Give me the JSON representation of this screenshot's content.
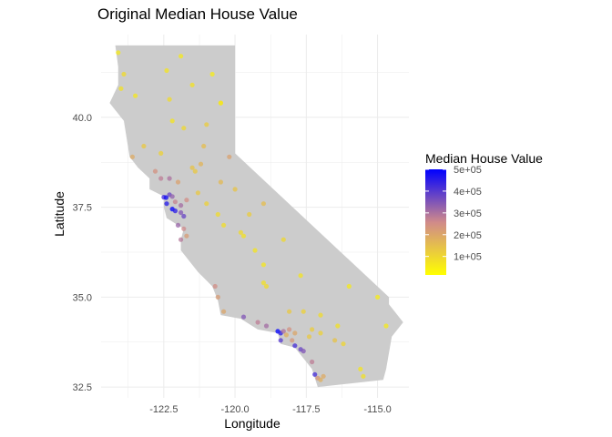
{
  "chart_data": {
    "type": "scatter",
    "title": "Original Median House Value",
    "xlabel": "Longitude",
    "ylabel": "Latitude",
    "xlim": [
      -124.7,
      -113.9
    ],
    "ylim": [
      32.2,
      42.3
    ],
    "x_ticks": [
      -122.5,
      -120.0,
      -117.5,
      -115.0
    ],
    "x_tick_labels": [
      "-122.5",
      "-120.0",
      "-117.5",
      "-115.0"
    ],
    "y_ticks": [
      32.5,
      35.0,
      37.5,
      40.0
    ],
    "y_tick_labels": [
      "32.5",
      "35.0",
      "37.5",
      "40.0"
    ],
    "grid": true,
    "legend": {
      "title": "Median House Value",
      "placement": "right",
      "min": 15000,
      "max": 500001,
      "low_color": "#ffff00",
      "high_color": "#0000ff",
      "breaks": [
        100000,
        200000,
        300000,
        400000,
        500000
      ],
      "break_labels": [
        "1e+05",
        "2e+05",
        "3e+05",
        "4e+05",
        "5e+05"
      ]
    },
    "map": {
      "region": "California",
      "fill_color": "#cccccc",
      "outline_lonlat": [
        [
          -124.2,
          42.0
        ],
        [
          -120.0,
          42.0
        ],
        [
          -120.0,
          39.0
        ],
        [
          -114.6,
          35.0
        ],
        [
          -114.6,
          34.8
        ],
        [
          -114.1,
          34.3
        ],
        [
          -114.5,
          33.9
        ],
        [
          -114.7,
          33.0
        ],
        [
          -114.8,
          32.7
        ],
        [
          -117.1,
          32.5
        ],
        [
          -117.3,
          33.0
        ],
        [
          -117.9,
          33.6
        ],
        [
          -118.4,
          33.7
        ],
        [
          -118.5,
          34.0
        ],
        [
          -119.2,
          34.1
        ],
        [
          -119.8,
          34.4
        ],
        [
          -120.5,
          34.5
        ],
        [
          -120.6,
          34.9
        ],
        [
          -120.8,
          35.3
        ],
        [
          -121.3,
          35.7
        ],
        [
          -121.9,
          36.3
        ],
        [
          -121.9,
          36.6
        ],
        [
          -121.8,
          36.9
        ],
        [
          -122.0,
          37.0
        ],
        [
          -122.4,
          37.2
        ],
        [
          -122.5,
          37.5
        ],
        [
          -122.5,
          37.8
        ],
        [
          -123.0,
          38.0
        ],
        [
          -123.0,
          38.3
        ],
        [
          -123.4,
          38.6
        ],
        [
          -123.7,
          38.9
        ],
        [
          -123.8,
          39.4
        ],
        [
          -123.9,
          39.9
        ],
        [
          -124.4,
          40.4
        ],
        [
          -124.1,
          40.9
        ],
        [
          -124.1,
          41.4
        ],
        [
          -124.2,
          42.0
        ]
      ]
    },
    "series": [
      {
        "note_columns": [
          "longitude",
          "latitude",
          "median_house_value"
        ],
        "points": [
          [
            -124.1,
            41.8,
            60000
          ],
          [
            -123.9,
            41.2,
            90000
          ],
          [
            -124.0,
            40.8,
            80000
          ],
          [
            -123.5,
            40.6,
            65000
          ],
          [
            -122.4,
            41.3,
            70000
          ],
          [
            -121.9,
            41.7,
            60000
          ],
          [
            -121.5,
            40.9,
            75000
          ],
          [
            -122.3,
            40.5,
            90000
          ],
          [
            -120.8,
            41.2,
            55000
          ],
          [
            -120.5,
            40.4,
            60000
          ],
          [
            -120.5,
            40.4,
            70000
          ],
          [
            -121.0,
            39.8,
            120000
          ],
          [
            -121.8,
            39.7,
            95000
          ],
          [
            -122.2,
            39.9,
            70000
          ],
          [
            -122.6,
            39.0,
            110000
          ],
          [
            -123.2,
            39.2,
            130000
          ],
          [
            -123.6,
            38.9,
            190000
          ],
          [
            -122.8,
            38.5,
            240000
          ],
          [
            -122.6,
            38.3,
            280000
          ],
          [
            -122.3,
            38.3,
            300000
          ],
          [
            -122.0,
            38.2,
            210000
          ],
          [
            -121.5,
            38.6,
            140000
          ],
          [
            -121.2,
            38.7,
            170000
          ],
          [
            -121.4,
            38.5,
            130000
          ],
          [
            -121.1,
            39.2,
            150000
          ],
          [
            -120.2,
            38.9,
            210000
          ],
          [
            -120.5,
            38.2,
            160000
          ],
          [
            -122.5,
            37.78,
            430000
          ],
          [
            -122.42,
            37.77,
            480000
          ],
          [
            -122.3,
            37.85,
            380000
          ],
          [
            -122.2,
            37.8,
            330000
          ],
          [
            -122.1,
            37.65,
            270000
          ],
          [
            -122.2,
            37.45,
            500000
          ],
          [
            -122.4,
            37.6,
            460000
          ],
          [
            -122.1,
            37.4,
            450000
          ],
          [
            -121.9,
            37.35,
            350000
          ],
          [
            -121.8,
            37.25,
            380000
          ],
          [
            -121.9,
            37.55,
            310000
          ],
          [
            -121.7,
            37.7,
            250000
          ],
          [
            -122.0,
            37.0,
            320000
          ],
          [
            -121.9,
            36.6,
            290000
          ],
          [
            -121.8,
            36.9,
            260000
          ],
          [
            -121.7,
            36.7,
            220000
          ],
          [
            -121.3,
            37.9,
            130000
          ],
          [
            -121.0,
            37.6,
            110000
          ],
          [
            -120.6,
            37.3,
            90000
          ],
          [
            -120.4,
            37.0,
            85000
          ],
          [
            -119.8,
            36.8,
            90000
          ],
          [
            -119.7,
            36.7,
            75000
          ],
          [
            -119.3,
            36.3,
            70000
          ],
          [
            -119.0,
            35.9,
            65000
          ],
          [
            -119.0,
            35.4,
            80000
          ],
          [
            -118.9,
            35.3,
            90000
          ],
          [
            -120.7,
            35.3,
            250000
          ],
          [
            -120.6,
            35.0,
            220000
          ],
          [
            -120.4,
            34.6,
            200000
          ],
          [
            -119.7,
            34.45,
            350000
          ],
          [
            -119.2,
            34.3,
            280000
          ],
          [
            -118.9,
            34.2,
            310000
          ],
          [
            -118.5,
            34.05,
            500000
          ],
          [
            -118.4,
            34.0,
            450000
          ],
          [
            -118.3,
            34.05,
            300000
          ],
          [
            -118.2,
            33.95,
            180000
          ],
          [
            -118.1,
            34.1,
            240000
          ],
          [
            -117.9,
            34.0,
            200000
          ],
          [
            -118.0,
            33.8,
            230000
          ],
          [
            -118.4,
            33.8,
            400000
          ],
          [
            -117.9,
            33.65,
            420000
          ],
          [
            -117.7,
            33.55,
            380000
          ],
          [
            -117.6,
            33.5,
            350000
          ],
          [
            -117.3,
            33.2,
            280000
          ],
          [
            -117.2,
            32.85,
            420000
          ],
          [
            -117.1,
            32.75,
            230000
          ],
          [
            -117.0,
            32.7,
            180000
          ],
          [
            -116.9,
            32.8,
            190000
          ],
          [
            -117.3,
            34.1,
            120000
          ],
          [
            -117.4,
            33.9,
            130000
          ],
          [
            -117.0,
            34.0,
            110000
          ],
          [
            -116.5,
            33.8,
            140000
          ],
          [
            -116.2,
            33.7,
            100000
          ],
          [
            -116.4,
            34.2,
            80000
          ],
          [
            -117.0,
            34.5,
            90000
          ],
          [
            -117.6,
            34.6,
            110000
          ],
          [
            -118.1,
            34.6,
            130000
          ],
          [
            -115.5,
            32.8,
            80000
          ],
          [
            -115.6,
            33.0,
            70000
          ],
          [
            -114.7,
            34.2,
            60000
          ],
          [
            -115.0,
            35.0,
            55000
          ],
          [
            -116.0,
            35.3,
            60000
          ],
          [
            -117.7,
            35.6,
            70000
          ],
          [
            -118.3,
            36.6,
            95000
          ],
          [
            -119.0,
            37.6,
            150000
          ],
          [
            -120.0,
            38.0,
            140000
          ],
          [
            -119.5,
            37.3,
            120000
          ]
        ]
      }
    ]
  }
}
